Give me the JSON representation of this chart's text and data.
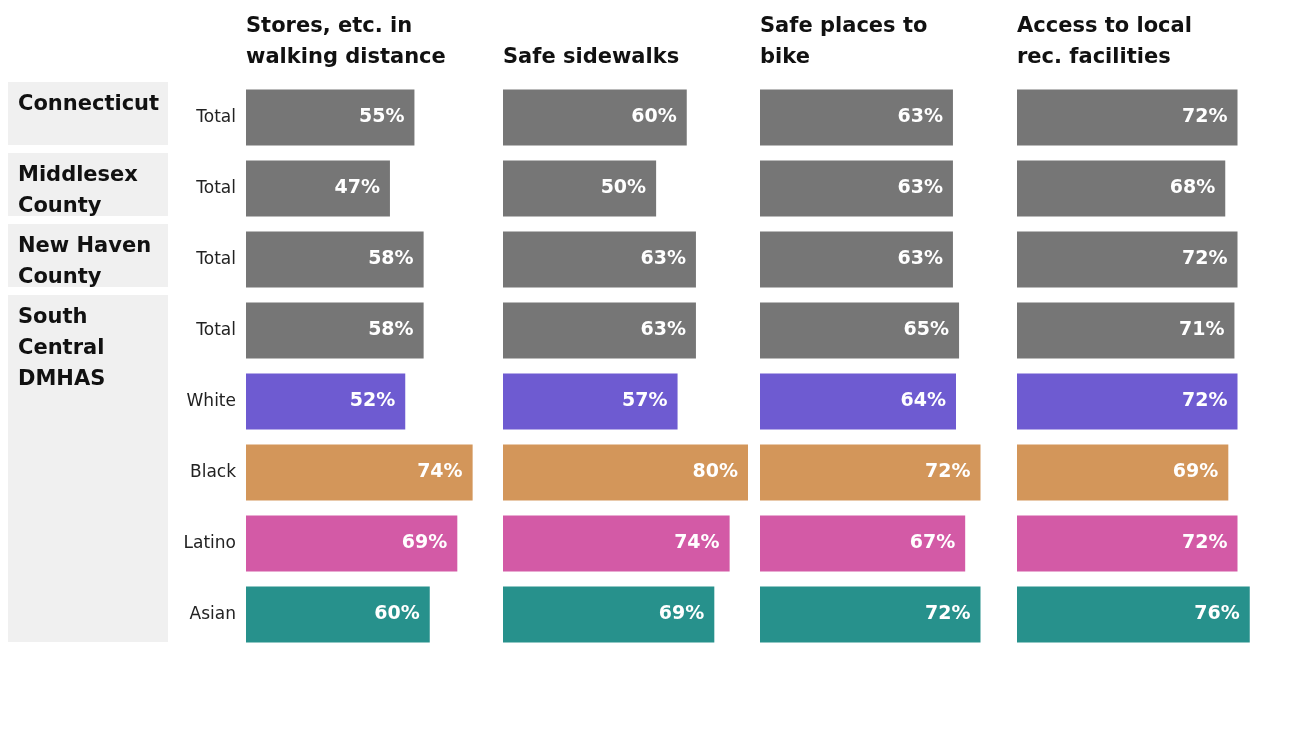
{
  "chart_data": [
    {
      "type": "bar",
      "orientation": "horizontal",
      "title": "Stores, etc. in walking distance",
      "categories": [
        "Total",
        "Total",
        "Total",
        "Total",
        "White",
        "Black",
        "Latino",
        "Asian"
      ],
      "values": [
        55,
        47,
        58,
        58,
        52,
        74,
        69,
        60
      ],
      "value_labels": [
        "55%",
        "47%",
        "58%",
        "58%",
        "52%",
        "74%",
        "69%",
        "60%"
      ],
      "colors": [
        "#767676",
        "#767676",
        "#767676",
        "#767676",
        "#6e5bd1",
        "#d3965a",
        "#d35aa6",
        "#27918c"
      ],
      "tick_labels": "y",
      "annotations": [
        "Connecticut",
        "Middlesex County",
        "New Haven County",
        "South Central DMHAS"
      ]
    },
    {
      "type": "bar",
      "orientation": "horizontal",
      "title": "Safe sidewalks",
      "categories": [
        null,
        null,
        null,
        null,
        null,
        null,
        null,
        null
      ],
      "values": [
        60,
        50,
        63,
        63,
        57,
        80,
        74,
        69
      ],
      "value_labels": [
        "60%",
        "50%",
        "63%",
        "63%",
        "57%",
        "80%",
        "74%",
        "69%"
      ],
      "colors": [
        "#767676",
        "#767676",
        "#767676",
        "#767676",
        "#6e5bd1",
        "#d3965a",
        "#d35aa6",
        "#27918c"
      ],
      "tick_labels": false
    },
    {
      "type": "bar",
      "orientation": "horizontal",
      "title": "Safe places to bike",
      "categories": [
        null,
        null,
        null,
        null,
        null,
        null,
        null,
        null
      ],
      "values": [
        63,
        63,
        63,
        65,
        64,
        72,
        67,
        72
      ],
      "value_labels": [
        "63%",
        "63%",
        "63%",
        "65%",
        "64%",
        "72%",
        "67%",
        "72%"
      ],
      "colors": [
        "#767676",
        "#767676",
        "#767676",
        "#767676",
        "#6e5bd1",
        "#d3965a",
        "#d35aa6",
        "#27918c"
      ],
      "tick_labels": false
    },
    {
      "type": "bar",
      "orientation": "horizontal",
      "title": "Access to local rec. facilities",
      "categories": [
        null,
        null,
        null,
        null,
        null,
        null,
        null,
        null
      ],
      "values": [
        72,
        68,
        72,
        71,
        72,
        69,
        72,
        76
      ],
      "value_labels": [
        "72%",
        "68%",
        "72%",
        "71%",
        "72%",
        "69%",
        "72%",
        "76%"
      ],
      "colors": [
        "#767676",
        "#767676",
        "#767676",
        "#767676",
        "#6e5bd1",
        "#d3965a",
        "#d35aa6",
        "#27918c"
      ],
      "tick_labels": false
    }
  ]
}
